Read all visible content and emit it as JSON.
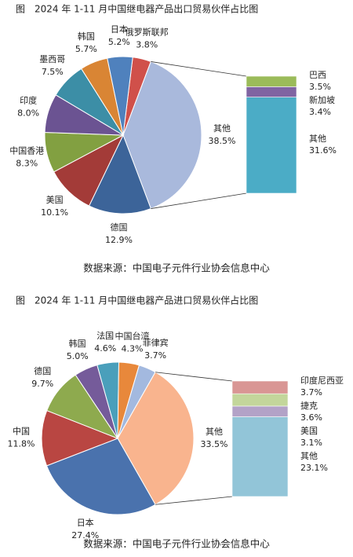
{
  "chart_data": [
    {
      "type": "pie-of-bar",
      "title": "图　2024 年 1-11 月中国继电器产品出口贸易伙伴占比图",
      "categories": [
        "俄罗斯联邦",
        "其他",
        "德国",
        "美国",
        "中国香港",
        "印度",
        "墨西哥",
        "韩国",
        "日本"
      ],
      "values": [
        3.8,
        38.5,
        12.9,
        10.1,
        8.3,
        8.0,
        7.5,
        5.7,
        5.2
      ],
      "value_labels": [
        "3.8%",
        "38.5%",
        "12.9%",
        "10.1%",
        "8.3%",
        "8.0%",
        "7.5%",
        "5.7%",
        "5.2%"
      ],
      "colors": [
        "#d0504a",
        "#a9b9dc",
        "#3c6499",
        "#a33b38",
        "#82a041",
        "#6b5392",
        "#3c8ea6",
        "#d98534",
        "#4f81bd"
      ],
      "bar": {
        "categories": [
          "巴西",
          "新加坡",
          "其他"
        ],
        "values": [
          3.5,
          3.4,
          31.6
        ],
        "value_labels": [
          "3.5%",
          "3.4%",
          "31.6%"
        ],
        "colors": [
          "#9bbb59",
          "#8064a2",
          "#4bacc6"
        ]
      },
      "source": "数据来源：中国电子元件行业协会信息中心"
    },
    {
      "type": "pie-of-bar",
      "title": "图　2024 年 1-11 月中国继电器产品进口贸易伙伴占比图",
      "categories": [
        "菲律宾",
        "其他",
        "日本",
        "中国",
        "德国",
        "韩国",
        "法国",
        "中国台湾"
      ],
      "values": [
        3.7,
        33.5,
        27.4,
        11.8,
        9.7,
        5.0,
        4.6,
        4.3
      ],
      "value_labels": [
        "3.7%",
        "33.5%",
        "27.4%",
        "11.8%",
        "9.7%",
        "5.0%",
        "4.6%",
        "4.3%"
      ],
      "colors": [
        "#a3b9df",
        "#f9b48e",
        "#4a72ad",
        "#b94642",
        "#8eaa4e",
        "#755b9a",
        "#4a9fbb",
        "#e8883b"
      ],
      "bar": {
        "categories": [
          "印度尼西亚",
          "捷克",
          "美国",
          "其他"
        ],
        "values": [
          3.7,
          3.6,
          3.1,
          23.1
        ],
        "value_labels": [
          "3.7%",
          "3.6%",
          "3.1%",
          "23.1%"
        ],
        "colors": [
          "#d99694",
          "#c3d69b",
          "#b3a2c7",
          "#92c5d8"
        ]
      },
      "source": "数据来源：中国电子元件行业协会信息中心"
    }
  ]
}
